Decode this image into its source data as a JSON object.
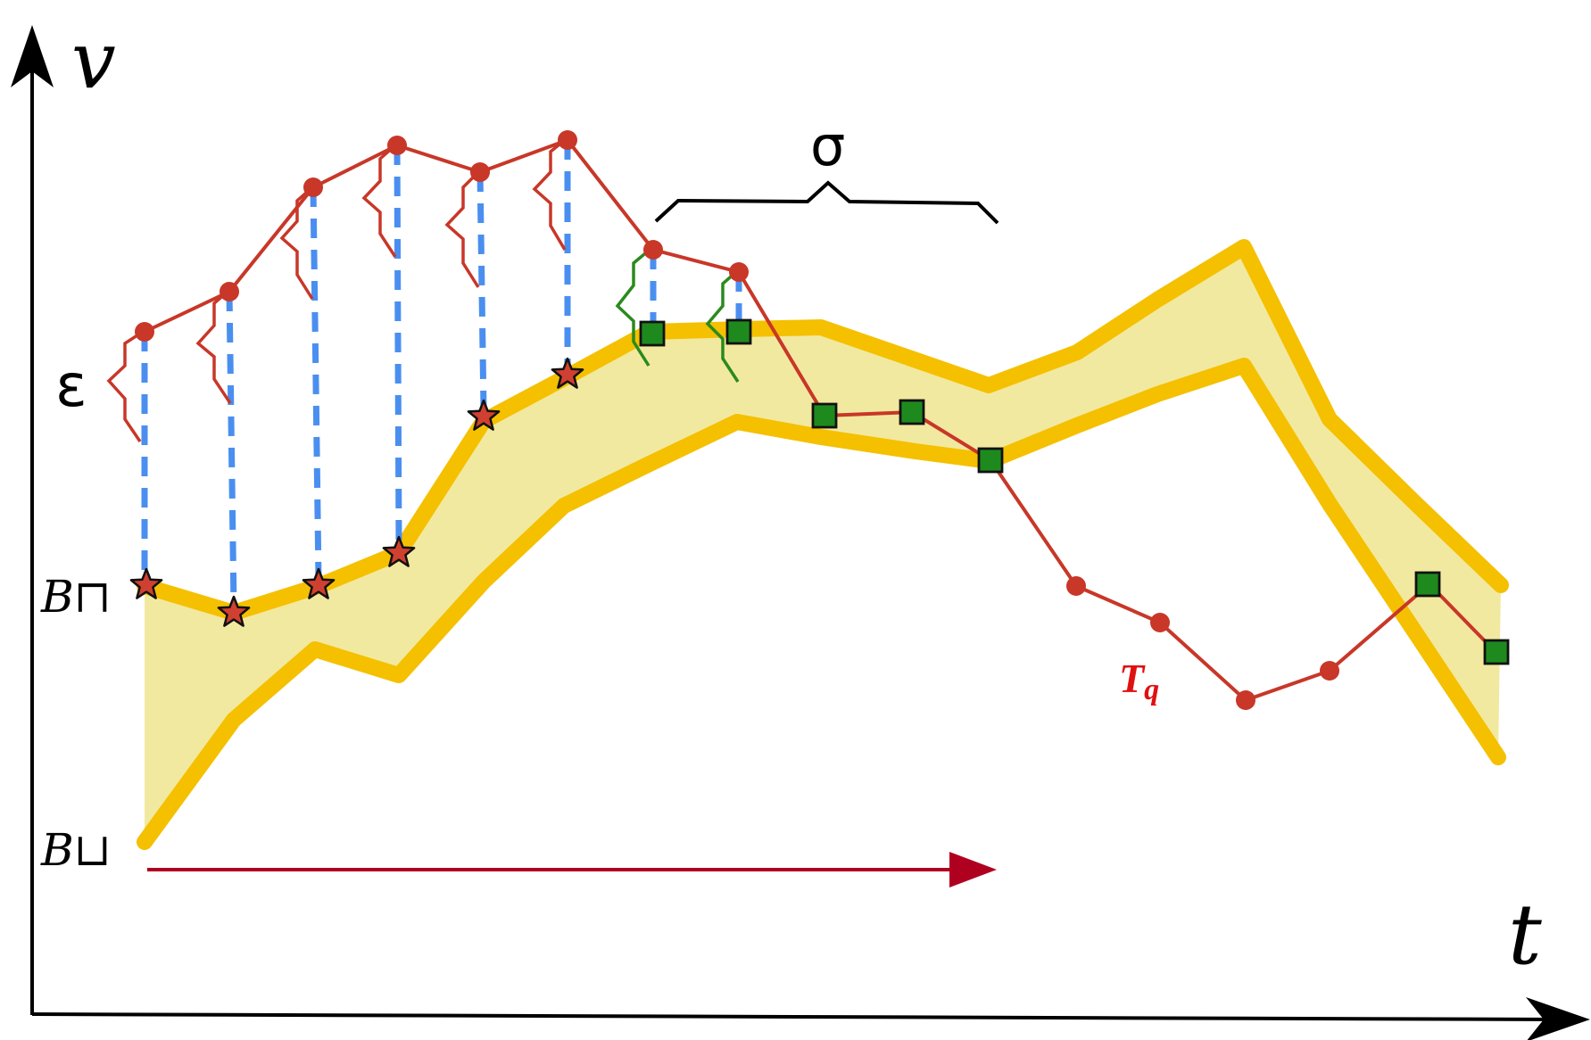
{
  "labels": {
    "v_axis": "v",
    "t_axis": "t",
    "epsilon": "ε",
    "sigma": "σ",
    "upper_bound": "B⊓",
    "lower_bound": "B⊔",
    "tq_main": "T",
    "tq_sub": "q"
  },
  "colors": {
    "series": "#c83728",
    "band_fill": "#f2e9a0",
    "band_edge": "#f5c000",
    "match_line": "#4a8ff0",
    "star_fill": "#d04030",
    "square_fill": "#1e8a1e",
    "zigzag_green": "#2a8a1e",
    "arrow": "#b00020",
    "axis": "#000000"
  },
  "icons": {
    "star": "star-marker-icon",
    "square": "square-marker-icon",
    "dot": "dot-marker-icon"
  }
}
